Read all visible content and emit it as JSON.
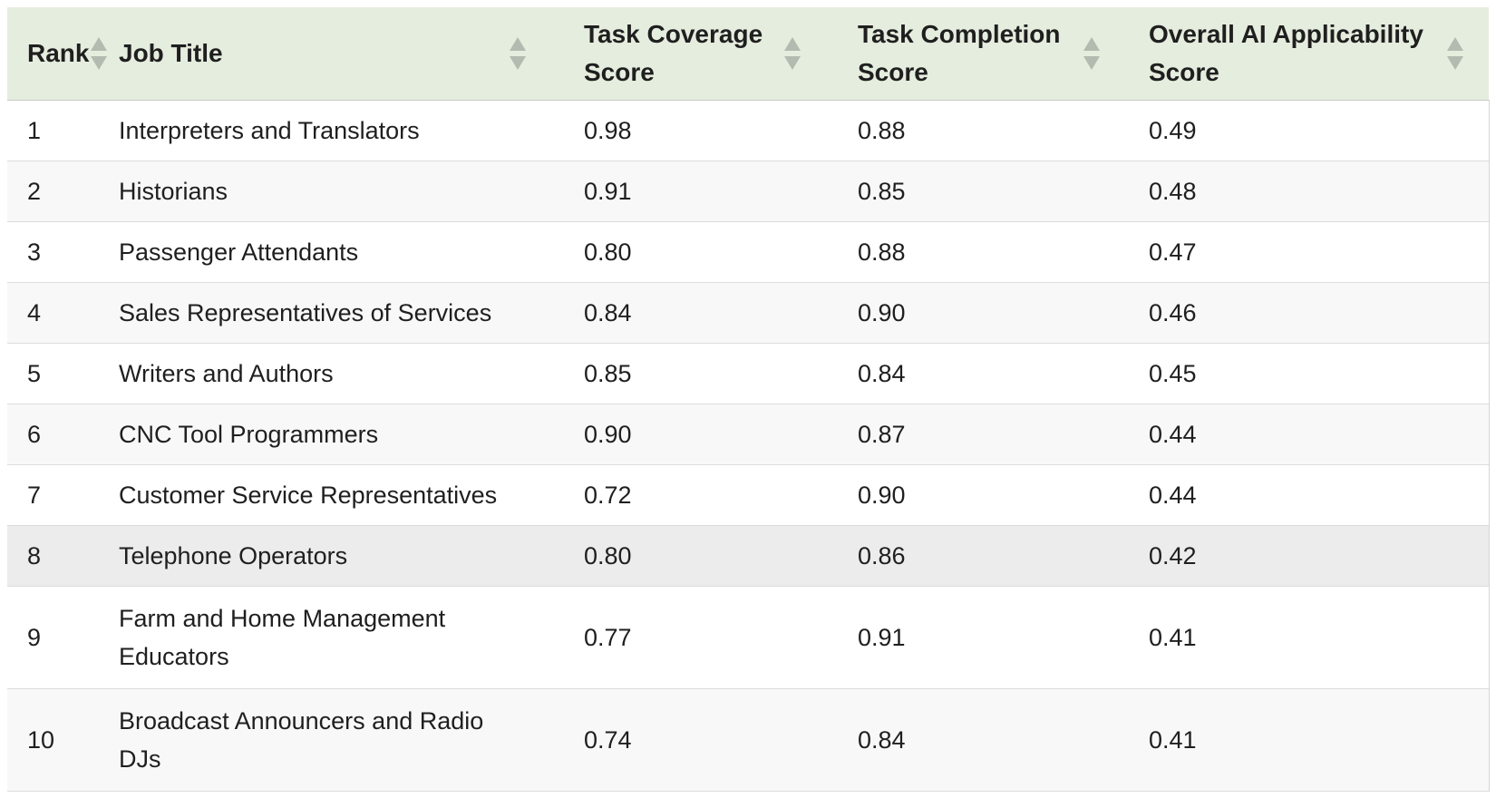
{
  "table": {
    "columns": [
      {
        "label": "Rank"
      },
      {
        "label": "Job Title"
      },
      {
        "label": "Task Coverage Score"
      },
      {
        "label": "Task Completion Score"
      },
      {
        "label": "Overall AI Applicability Score"
      }
    ],
    "rows": [
      {
        "rank": "1",
        "job_title": "Interpreters and Translators",
        "task_coverage": "0.98",
        "task_completion": "0.88",
        "overall_ai_applicability": "0.49"
      },
      {
        "rank": "2",
        "job_title": "Historians",
        "task_coverage": "0.91",
        "task_completion": "0.85",
        "overall_ai_applicability": "0.48"
      },
      {
        "rank": "3",
        "job_title": "Passenger Attendants",
        "task_coverage": "0.80",
        "task_completion": "0.88",
        "overall_ai_applicability": "0.47"
      },
      {
        "rank": "4",
        "job_title": "Sales Representatives of Services",
        "task_coverage": "0.84",
        "task_completion": "0.90",
        "overall_ai_applicability": "0.46"
      },
      {
        "rank": "5",
        "job_title": "Writers and Authors",
        "task_coverage": "0.85",
        "task_completion": "0.84",
        "overall_ai_applicability": "0.45"
      },
      {
        "rank": "6",
        "job_title": "CNC Tool Programmers",
        "task_coverage": "0.90",
        "task_completion": "0.87",
        "overall_ai_applicability": "0.44"
      },
      {
        "rank": "7",
        "job_title": "Customer Service Representatives",
        "task_coverage": "0.72",
        "task_completion": "0.90",
        "overall_ai_applicability": "0.44"
      },
      {
        "rank": "8",
        "job_title": "Telephone Operators",
        "task_coverage": "0.80",
        "task_completion": "0.86",
        "overall_ai_applicability": "0.42"
      },
      {
        "rank": "9",
        "job_title": "Farm and Home Management Educators",
        "task_coverage": "0.77",
        "task_completion": "0.91",
        "overall_ai_applicability": "0.41"
      },
      {
        "rank": "10",
        "job_title": "Broadcast Announcers and Radio DJs",
        "task_coverage": "0.74",
        "task_completion": "0.84",
        "overall_ai_applicability": "0.41"
      }
    ],
    "icons": {
      "sort": "up-down-triangles"
    },
    "colors": {
      "header_background": "#e5edde",
      "row_alternate": "#f8f8f8",
      "row_hover": "#ececec",
      "row_divider": "#dcdcdc",
      "sort_icon": "#b3bab0",
      "text": "#1f1f1f"
    }
  }
}
